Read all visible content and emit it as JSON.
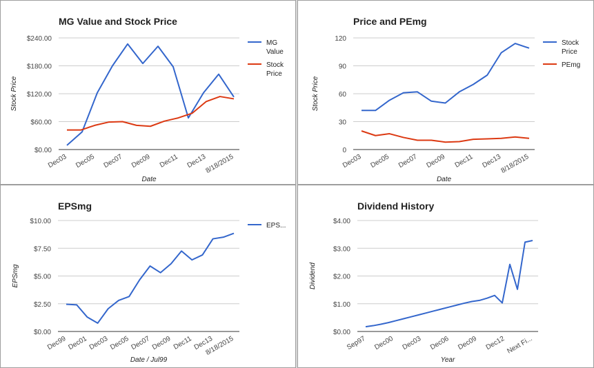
{
  "chart_data": [
    {
      "type": "line",
      "title": "MG Value and Stock Price",
      "xlabel": "Date",
      "ylabel": "Stock Price",
      "ylim": [
        0,
        240
      ],
      "yticks": [
        "$0.00",
        "$60.00",
        "$120.00",
        "$180.00",
        "$240.00"
      ],
      "xticks": [
        "Dec03",
        "Dec05",
        "Dec07",
        "Dec09",
        "Dec11",
        "Dec13",
        "8/18/2015"
      ],
      "legend": "right",
      "series": [
        {
          "name": "MG Value",
          "color": "#3366cc",
          "values": [
            9,
            38,
            122,
            180,
            227,
            185,
            222,
            178,
            68,
            122,
            162,
            113
          ]
        },
        {
          "name": "Stock Price",
          "color": "#dc3912",
          "values": [
            42,
            42,
            52,
            59,
            60,
            52,
            50,
            61,
            68,
            78,
            103,
            114,
            109
          ]
        }
      ]
    },
    {
      "type": "line",
      "title": "Price and PEmg",
      "xlabel": "Date",
      "ylabel": "Stock Price",
      "ylim": [
        0,
        120
      ],
      "yticks": [
        "0",
        "30",
        "60",
        "90",
        "120"
      ],
      "xticks": [
        "Dec03",
        "Dec05",
        "Dec07",
        "Dec09",
        "Dec11",
        "Dec13",
        "8/18/2015"
      ],
      "legend": "right",
      "series": [
        {
          "name": "Stock Price",
          "color": "#3366cc",
          "values": [
            42,
            42,
            53,
            61,
            62,
            52,
            50,
            62,
            70,
            80,
            104,
            114,
            109
          ]
        },
        {
          "name": "PEmg",
          "color": "#dc3912",
          "values": [
            20,
            15,
            17,
            13,
            10,
            10,
            8,
            8.5,
            11,
            11.5,
            12,
            13.5,
            12
          ]
        }
      ]
    },
    {
      "type": "line",
      "title": "EPSmg",
      "xlabel": "Date / Jul99",
      "ylabel": "EPSmg",
      "ylim": [
        0,
        10
      ],
      "yticks": [
        "$0.00",
        "$2.50",
        "$5.00",
        "$7.50",
        "$10.00"
      ],
      "xticks": [
        "Dec99",
        "Dec01",
        "Dec03",
        "Dec05",
        "Dec07",
        "Dec09",
        "Dec11",
        "Dec13",
        "8/18/2015"
      ],
      "legend": "right",
      "series": [
        {
          "name": "EPS...",
          "color": "#3366cc",
          "values": [
            2.45,
            2.4,
            1.3,
            0.75,
            2.05,
            2.8,
            3.15,
            4.65,
            5.9,
            5.3,
            6.1,
            7.25,
            6.45,
            6.9,
            8.35,
            8.5,
            8.85
          ]
        }
      ]
    },
    {
      "type": "line",
      "title": "Dividend History",
      "xlabel": "Year",
      "ylabel": "Dividend",
      "ylim": [
        0,
        4
      ],
      "yticks": [
        "$0.00",
        "$1.00",
        "$2.00",
        "$3.00",
        "$4.00"
      ],
      "xticks": [
        "Sep97",
        "Dec00",
        "Dec03",
        "Dec06",
        "Dec09",
        "Dec12",
        "Next Fi..."
      ],
      "series": [
        {
          "name": "",
          "color": "#3366cc",
          "values": [
            0.17,
            0.21,
            0.26,
            0.32,
            0.39,
            0.46,
            0.53,
            0.6,
            0.67,
            0.74,
            0.81,
            0.88,
            0.95,
            1.02,
            1.08,
            1.12,
            1.2,
            1.3,
            1.03,
            2.42,
            1.52,
            3.22,
            3.28
          ]
        }
      ]
    }
  ]
}
